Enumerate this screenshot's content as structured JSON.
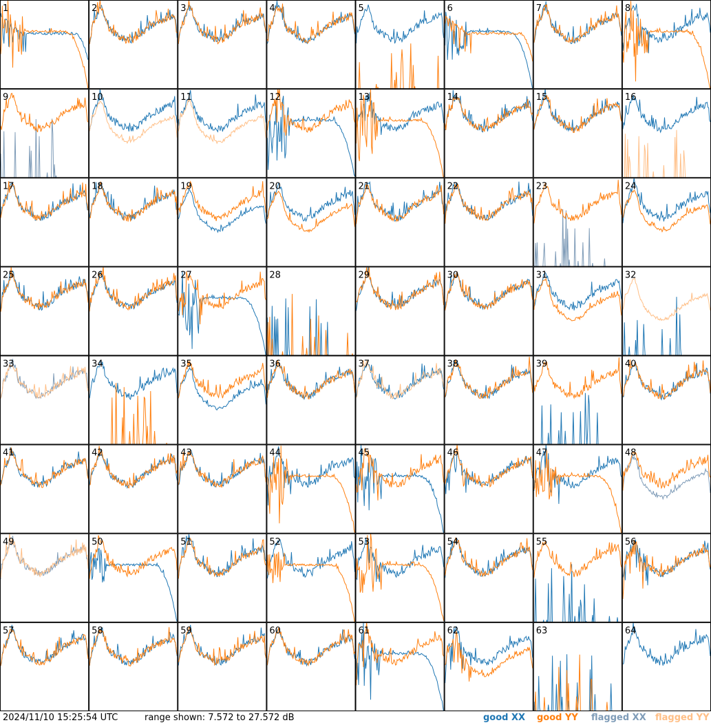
{
  "footer": {
    "timestamp": "2024/11/10 15:25:54 UTC",
    "range_text": "range shown: 7.572 to 27.572 dB",
    "legend": {
      "good_xx": "good XX",
      "good_yy": "good YY",
      "flagged_xx": "flagged XX",
      "flagged_yy": "flagged YY"
    }
  },
  "colors": {
    "good_xx": "#1f77b4",
    "good_yy": "#ff7f0e",
    "flagged_xx": "#7f9cb8",
    "flagged_yy": "#ffbf87"
  },
  "chart_data": {
    "type": "line",
    "grid": {
      "rows": 8,
      "cols": 8
    },
    "ylim": [
      7.572,
      27.572
    ],
    "y_unit": "dB",
    "panels": [
      {
        "id": "1",
        "xx": "good",
        "yy": "good",
        "xx_shape": "flat",
        "yy_shape": "droop",
        "noisy": true
      },
      {
        "id": "2",
        "xx": "good",
        "yy": "good",
        "xx_shape": "typical",
        "yy_shape": "typical"
      },
      {
        "id": "3",
        "xx": "good",
        "yy": "good",
        "xx_shape": "typical",
        "yy_shape": "typical"
      },
      {
        "id": "4",
        "xx": "good",
        "yy": "good",
        "xx_shape": "typical",
        "yy_shape": "typical"
      },
      {
        "id": "5",
        "xx": "good",
        "yy": "good",
        "xx_shape": "typical",
        "yy_shape": "spike"
      },
      {
        "id": "6",
        "xx": "good",
        "yy": "good",
        "xx_shape": "droop",
        "yy_shape": "flat",
        "noisy": true
      },
      {
        "id": "7",
        "xx": "good",
        "yy": "good",
        "xx_shape": "typical",
        "yy_shape": "typical"
      },
      {
        "id": "8",
        "xx": "good",
        "yy": "good",
        "xx_shape": "typical",
        "yy_shape": "droop",
        "noisy": true
      },
      {
        "id": "9",
        "xx": "flagged",
        "yy": "good",
        "xx_shape": "spike",
        "yy_shape": "typical"
      },
      {
        "id": "10",
        "xx": "good",
        "yy": "flagged",
        "xx_shape": "typical",
        "yy_shape": "low"
      },
      {
        "id": "11",
        "xx": "good",
        "yy": "flagged",
        "xx_shape": "typical",
        "yy_shape": "low"
      },
      {
        "id": "12",
        "xx": "good",
        "yy": "good",
        "xx_shape": "droop",
        "yy_shape": "typical",
        "noisy": true
      },
      {
        "id": "13",
        "xx": "good",
        "yy": "good",
        "xx_shape": "typical",
        "yy_shape": "droop",
        "noisy": true
      },
      {
        "id": "14",
        "xx": "good",
        "yy": "good",
        "xx_shape": "typical",
        "yy_shape": "typical"
      },
      {
        "id": "15",
        "xx": "good",
        "yy": "good",
        "xx_shape": "typical",
        "yy_shape": "typical"
      },
      {
        "id": "16",
        "xx": "good",
        "yy": "flagged",
        "xx_shape": "typical",
        "yy_shape": "spike"
      },
      {
        "id": "17",
        "xx": "good",
        "yy": "good",
        "xx_shape": "typical",
        "yy_shape": "typical"
      },
      {
        "id": "18",
        "xx": "good",
        "yy": "good",
        "xx_shape": "typical",
        "yy_shape": "typical"
      },
      {
        "id": "19",
        "xx": "good",
        "yy": "good",
        "xx_shape": "low",
        "yy_shape": "typical"
      },
      {
        "id": "20",
        "xx": "good",
        "yy": "good",
        "xx_shape": "typical",
        "yy_shape": "low"
      },
      {
        "id": "21",
        "xx": "good",
        "yy": "good",
        "xx_shape": "typical",
        "yy_shape": "typical"
      },
      {
        "id": "22",
        "xx": "good",
        "yy": "good",
        "xx_shape": "typical",
        "yy_shape": "typical"
      },
      {
        "id": "23",
        "xx": "flagged",
        "yy": "good",
        "xx_shape": "spike",
        "yy_shape": "typical"
      },
      {
        "id": "24",
        "xx": "good",
        "yy": "good",
        "xx_shape": "typical",
        "yy_shape": "low"
      },
      {
        "id": "25",
        "xx": "good",
        "yy": "good",
        "xx_shape": "typical",
        "yy_shape": "typical"
      },
      {
        "id": "26",
        "xx": "good",
        "yy": "good",
        "xx_shape": "typical",
        "yy_shape": "typical"
      },
      {
        "id": "27",
        "xx": "good",
        "yy": "good",
        "xx_shape": "droop",
        "yy_shape": "typical",
        "noisy": true
      },
      {
        "id": "28",
        "xx": "good",
        "yy": "good",
        "xx_shape": "spike",
        "yy_shape": "spike"
      },
      {
        "id": "29",
        "xx": "good",
        "yy": "good",
        "xx_shape": "typical",
        "yy_shape": "typical"
      },
      {
        "id": "30",
        "xx": "good",
        "yy": "good",
        "xx_shape": "typical",
        "yy_shape": "typical"
      },
      {
        "id": "31",
        "xx": "good",
        "yy": "good",
        "xx_shape": "typical",
        "yy_shape": "low"
      },
      {
        "id": "32",
        "xx": "good",
        "yy": "flagged",
        "xx_shape": "spike",
        "yy_shape": "low"
      },
      {
        "id": "33",
        "xx": "flagged",
        "yy": "flagged",
        "xx_shape": "typical",
        "yy_shape": "typical"
      },
      {
        "id": "34",
        "xx": "good",
        "yy": "good",
        "xx_shape": "typical",
        "yy_shape": "spike"
      },
      {
        "id": "35",
        "xx": "good",
        "yy": "good",
        "xx_shape": "low",
        "yy_shape": "typical"
      },
      {
        "id": "36",
        "xx": "good",
        "yy": "good",
        "xx_shape": "typical",
        "yy_shape": "typical"
      },
      {
        "id": "37",
        "xx": "good",
        "yy": "flagged",
        "xx_shape": "typical",
        "yy_shape": "typical"
      },
      {
        "id": "38",
        "xx": "good",
        "yy": "good",
        "xx_shape": "typical",
        "yy_shape": "typical"
      },
      {
        "id": "39",
        "xx": "good",
        "yy": "good",
        "xx_shape": "spike",
        "yy_shape": "typical"
      },
      {
        "id": "40",
        "xx": "good",
        "yy": "good",
        "xx_shape": "typical",
        "yy_shape": "typical"
      },
      {
        "id": "41",
        "xx": "good",
        "yy": "good",
        "xx_shape": "typical",
        "yy_shape": "typical"
      },
      {
        "id": "42",
        "xx": "good",
        "yy": "good",
        "xx_shape": "typical",
        "yy_shape": "typical"
      },
      {
        "id": "43",
        "xx": "good",
        "yy": "good",
        "xx_shape": "typical",
        "yy_shape": "typical"
      },
      {
        "id": "44",
        "xx": "good",
        "yy": "good",
        "xx_shape": "typical",
        "yy_shape": "droop",
        "noisy": true
      },
      {
        "id": "45",
        "xx": "good",
        "yy": "good",
        "xx_shape": "droop",
        "yy_shape": "typical",
        "noisy": true
      },
      {
        "id": "46",
        "xx": "good",
        "yy": "good",
        "xx_shape": "typical",
        "yy_shape": "typical",
        "noisy": true
      },
      {
        "id": "47",
        "xx": "good",
        "yy": "good",
        "xx_shape": "typical",
        "yy_shape": "droop",
        "noisy": true
      },
      {
        "id": "48",
        "xx": "flagged",
        "yy": "good",
        "xx_shape": "low",
        "yy_shape": "typical"
      },
      {
        "id": "49",
        "xx": "flagged",
        "yy": "flagged",
        "xx_shape": "typical",
        "yy_shape": "typical"
      },
      {
        "id": "50",
        "xx": "good",
        "yy": "good",
        "xx_shape": "droop",
        "yy_shape": "typical"
      },
      {
        "id": "51",
        "xx": "good",
        "yy": "good",
        "xx_shape": "typical",
        "yy_shape": "typical"
      },
      {
        "id": "52",
        "xx": "good",
        "yy": "good",
        "xx_shape": "typical",
        "yy_shape": "droop"
      },
      {
        "id": "53",
        "xx": "good",
        "yy": "good",
        "xx_shape": "typical",
        "yy_shape": "droop",
        "noisy": true
      },
      {
        "id": "54",
        "xx": "good",
        "yy": "good",
        "xx_shape": "typical",
        "yy_shape": "typical"
      },
      {
        "id": "55",
        "xx": "good",
        "yy": "good",
        "xx_shape": "spike",
        "yy_shape": "typical"
      },
      {
        "id": "56",
        "xx": "good",
        "yy": "good",
        "xx_shape": "typical",
        "yy_shape": "typical",
        "noisy": true
      },
      {
        "id": "57",
        "xx": "good",
        "yy": "good",
        "xx_shape": "typical",
        "yy_shape": "typical"
      },
      {
        "id": "58",
        "xx": "good",
        "yy": "good",
        "xx_shape": "typical",
        "yy_shape": "typical"
      },
      {
        "id": "59",
        "xx": "good",
        "yy": "good",
        "xx_shape": "typical",
        "yy_shape": "typical"
      },
      {
        "id": "60",
        "xx": "good",
        "yy": "good",
        "xx_shape": "typical",
        "yy_shape": "typical"
      },
      {
        "id": "61",
        "xx": "good",
        "yy": "good",
        "xx_shape": "droop",
        "yy_shape": "typical",
        "noisy": true
      },
      {
        "id": "62",
        "xx": "good",
        "yy": "good",
        "xx_shape": "typical",
        "yy_shape": "low",
        "noisy": true
      },
      {
        "id": "63",
        "xx": "good",
        "yy": "good",
        "xx_shape": "spike",
        "yy_shape": "spike"
      },
      {
        "id": "64",
        "xx": "good",
        "yy": "good",
        "xx_shape": "typical",
        "yy_shape": "none"
      }
    ]
  }
}
